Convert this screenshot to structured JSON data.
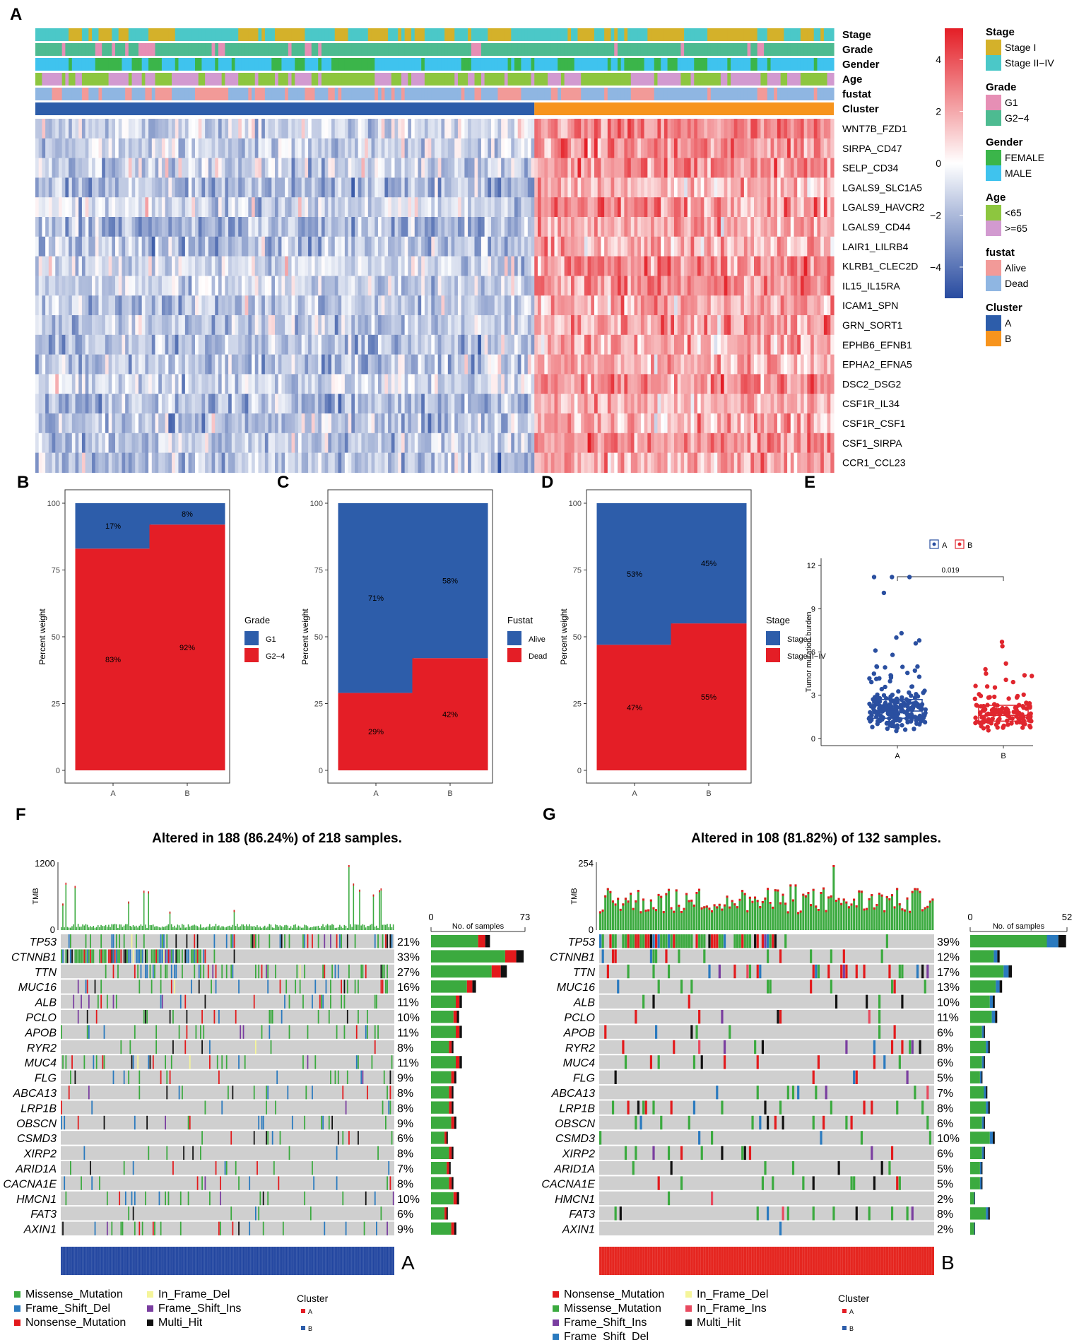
{
  "panel_letters": {
    "A": "A",
    "B": "B",
    "C": "C",
    "D": "D",
    "E": "E",
    "F": "F",
    "G": "G"
  },
  "colors": {
    "blue": "#2D5DAA",
    "red": "#E41E26",
    "gold": "#D4B12A",
    "teal": "#4BC8C8",
    "pink": "#E68FB5",
    "seagreen": "#4DBB91",
    "green": "#3BB54A",
    "skyblue": "#3FC3EE",
    "lime": "#8DC63F",
    "orchid": "#D29AD0",
    "salmon": "#F29A98",
    "lightblue": "#8FB6E2",
    "orange": "#F7941D",
    "missense": "#3BAA3F",
    "frameshiftdel": "#2A7ABF",
    "nonsense": "#E31A1C",
    "inframedel": "#F5F59A",
    "frameshiftins": "#7A3EA0",
    "multihit": "#111111",
    "inframeins": "#E84A5F",
    "grey": "#CFCFCF"
  },
  "heatmap": {
    "annotation_rows": [
      "Stage",
      "Grade",
      "Gender",
      "Age",
      "fustat",
      "Cluster"
    ],
    "genes": [
      "WNT7B_FZD1",
      "SIRPA_CD47",
      "SELP_CD34",
      "LGALS9_SLC1A5",
      "LGALS9_HAVCR2",
      "LGALS9_CD44",
      "LAIR1_LILRB4",
      "KLRB1_CLEC2D",
      "IL15_IL15RA",
      "ICAM1_SPN",
      "GRN_SORT1",
      "EPHB6_EFNB1",
      "EPHA2_EFNA5",
      "DSC2_DSG2",
      "CSF1R_IL34",
      "CSF1R_CSF1",
      "CSF1_SIRPA",
      "CCR1_CCL23"
    ],
    "colorbar_ticks": [
      "4",
      "2",
      "0",
      "−2",
      "−4"
    ],
    "colorbar_values": [
      4,
      2,
      0,
      -2,
      -4
    ],
    "legend": [
      {
        "title": "Stage",
        "items": [
          {
            "label": "Stage I",
            "color": "#D4B12A"
          },
          {
            "label": "Stage II−IV",
            "color": "#4BC8C8"
          }
        ]
      },
      {
        "title": "Grade",
        "items": [
          {
            "label": "G1",
            "color": "#E68FB5"
          },
          {
            "label": "G2−4",
            "color": "#4DBB91"
          }
        ]
      },
      {
        "title": "Gender",
        "items": [
          {
            "label": "FEMALE",
            "color": "#3BB54A"
          },
          {
            "label": "MALE",
            "color": "#3FC3EE"
          }
        ]
      },
      {
        "title": "Age",
        "items": [
          {
            "label": "<65",
            "color": "#8DC63F"
          },
          {
            "label": ">=65",
            "color": "#D29AD0"
          }
        ]
      },
      {
        "title": "fustat",
        "items": [
          {
            "label": "Alive",
            "color": "#F29A98"
          },
          {
            "label": "Dead",
            "color": "#8FB6E2"
          }
        ]
      },
      {
        "title": "Cluster",
        "items": [
          {
            "label": "A",
            "color": "#2D5DAA"
          },
          {
            "label": "B",
            "color": "#F7941D"
          }
        ]
      }
    ]
  },
  "chart_data": [
    {
      "panel": "B",
      "type": "bar",
      "stacked": true,
      "categories": [
        "A",
        "B"
      ],
      "ylabel": "Percent weight",
      "ylim": [
        0,
        100
      ],
      "yticks": [
        "0",
        "25",
        "50",
        "75",
        "100"
      ],
      "legend_title": "Grade",
      "series": [
        {
          "name": "G1",
          "color": "#2D5DAA",
          "values": [
            17,
            8
          ],
          "labels": [
            "17%",
            "8%"
          ]
        },
        {
          "name": "G2−4",
          "color": "#E41E26",
          "values": [
            83,
            92
          ],
          "labels": [
            "83%",
            "92%"
          ]
        }
      ]
    },
    {
      "panel": "C",
      "type": "bar",
      "stacked": true,
      "categories": [
        "A",
        "B"
      ],
      "ylabel": "Percent weight",
      "ylim": [
        0,
        100
      ],
      "yticks": [
        "0",
        "25",
        "50",
        "75",
        "100"
      ],
      "legend_title": "Fustat",
      "series": [
        {
          "name": "Alive",
          "color": "#2D5DAA",
          "values": [
            71,
            58
          ],
          "labels": [
            "71%",
            "58%"
          ]
        },
        {
          "name": "Dead",
          "color": "#E41E26",
          "values": [
            29,
            42
          ],
          "labels": [
            "29%",
            "42%"
          ]
        }
      ]
    },
    {
      "panel": "D",
      "type": "bar",
      "stacked": true,
      "categories": [
        "A",
        "B"
      ],
      "ylabel": "Percent weight",
      "ylim": [
        0,
        100
      ],
      "yticks": [
        "0",
        "25",
        "50",
        "75",
        "100"
      ],
      "legend_title": "Stage",
      "series": [
        {
          "name": "Stage I",
          "color": "#2D5DAA",
          "values": [
            53,
            45
          ],
          "labels": [
            "53%",
            "45%"
          ]
        },
        {
          "name": "Stage II−IV",
          "color": "#E41E26",
          "values": [
            47,
            55
          ],
          "labels": [
            "47%",
            "55%"
          ]
        }
      ]
    },
    {
      "panel": "E",
      "type": "scatter",
      "subtype": "box",
      "categories": [
        "A",
        "B"
      ],
      "ylabel": "Tumor mutation burden",
      "ylim": [
        -0.5,
        12.5
      ],
      "yticks": [
        "0",
        "3",
        "6",
        "9",
        "12"
      ],
      "ytick_values": [
        0,
        3,
        6,
        9,
        12
      ],
      "legend": [
        "A",
        "B"
      ],
      "pvalue": "0.019",
      "boxes": [
        {
          "name": "A",
          "color": "#2A4FA0",
          "q1": 1.4,
          "median": 1.9,
          "q3": 2.7,
          "n": 218
        },
        {
          "name": "B",
          "color": "#E0262E",
          "q1": 1.2,
          "median": 1.6,
          "q3": 2.3,
          "n": 132
        }
      ],
      "outliers": [
        {
          "group": "A",
          "values": [
            11.2,
            11.2,
            11.2,
            10.1,
            7.3,
            7.0,
            6.8,
            6.6,
            6.1,
            5.8
          ]
        },
        {
          "group": "B",
          "values": [
            6.7,
            6.4,
            5.2,
            4.8,
            4.5
          ]
        }
      ]
    },
    {
      "panel": "F",
      "type": "bar",
      "subtype": "oncoplot",
      "title": "Altered in 188 (86.24%) of 218 samples.",
      "tmb_label": "TMB",
      "tmb_max": "1200",
      "samples": 218,
      "side_axis": {
        "min": "0",
        "max": "73",
        "label": "No. of samples",
        "max_value": 73
      },
      "cluster_label": "A",
      "cluster_color": "#2246A0",
      "genes": [
        "TP53",
        "CTNNB1",
        "TTN",
        "MUC16",
        "ALB",
        "PCLO",
        "APOB",
        "RYR2",
        "MUC4",
        "FLG",
        "ABCA13",
        "LRP1B",
        "OBSCN",
        "CSMD3",
        "XIRP2",
        "ARID1A",
        "CACNA1E",
        "HMCN1",
        "FAT3",
        "AXIN1"
      ],
      "percent": [
        "21%",
        "33%",
        "27%",
        "16%",
        "11%",
        "10%",
        "11%",
        "8%",
        "11%",
        "9%",
        "8%",
        "8%",
        "9%",
        "6%",
        "8%",
        "7%",
        "8%",
        "10%",
        "6%",
        "9%"
      ],
      "percent_values": [
        21,
        33,
        27,
        16,
        11,
        10,
        11,
        8,
        11,
        9,
        8,
        8,
        9,
        6,
        8,
        7,
        8,
        10,
        6,
        9
      ],
      "legend": [
        {
          "label": "Missense_Mutation",
          "color": "#3BAA3F"
        },
        {
          "label": "In_Frame_Del",
          "color": "#F5F59A"
        },
        {
          "label": "Frame_Shift_Del",
          "color": "#2A7ABF"
        },
        {
          "label": "Frame_Shift_Ins",
          "color": "#7A3EA0"
        },
        {
          "label": "Nonsense_Mutation",
          "color": "#E31A1C"
        },
        {
          "label": "Multi_Hit",
          "color": "#111111"
        }
      ],
      "cluster_legend": {
        "title": "Cluster",
        "items": [
          "A",
          "B"
        ]
      }
    },
    {
      "panel": "G",
      "type": "bar",
      "subtype": "oncoplot",
      "title": "Altered in 108 (81.82%) of 132 samples.",
      "tmb_label": "TMB",
      "tmb_max": "254",
      "samples": 132,
      "side_axis": {
        "min": "0",
        "max": "52",
        "label": "No. of samples",
        "max_value": 52
      },
      "cluster_label": "B",
      "cluster_color": "#E52620",
      "genes": [
        "TP53",
        "CTNNB1",
        "TTN",
        "MUC16",
        "ALB",
        "PCLO",
        "APOB",
        "RYR2",
        "MUC4",
        "FLG",
        "ABCA13",
        "LRP1B",
        "OBSCN",
        "CSMD3",
        "XIRP2",
        "ARID1A",
        "CACNA1E",
        "HMCN1",
        "FAT3",
        "AXIN1"
      ],
      "percent": [
        "39%",
        "12%",
        "17%",
        "13%",
        "10%",
        "11%",
        "6%",
        "8%",
        "6%",
        "5%",
        "7%",
        "8%",
        "6%",
        "10%",
        "6%",
        "5%",
        "5%",
        "2%",
        "8%",
        "2%"
      ],
      "percent_values": [
        39,
        12,
        17,
        13,
        10,
        11,
        6,
        8,
        6,
        5,
        7,
        8,
        6,
        10,
        6,
        5,
        5,
        2,
        8,
        2
      ],
      "legend": [
        {
          "label": "Nonsense_Mutation",
          "color": "#E31A1C"
        },
        {
          "label": "In_Frame_Del",
          "color": "#F5F59A"
        },
        {
          "label": "Missense_Mutation",
          "color": "#3BAA3F"
        },
        {
          "label": "In_Frame_Ins",
          "color": "#E84A5F"
        },
        {
          "label": "Frame_Shift_Ins",
          "color": "#7A3EA0"
        },
        {
          "label": "Multi_Hit",
          "color": "#111111"
        },
        {
          "label": "Frame_Shift_Del",
          "color": "#2A7ABF"
        }
      ],
      "cluster_legend": {
        "title": "Cluster",
        "items": [
          "A",
          "B"
        ]
      }
    }
  ]
}
